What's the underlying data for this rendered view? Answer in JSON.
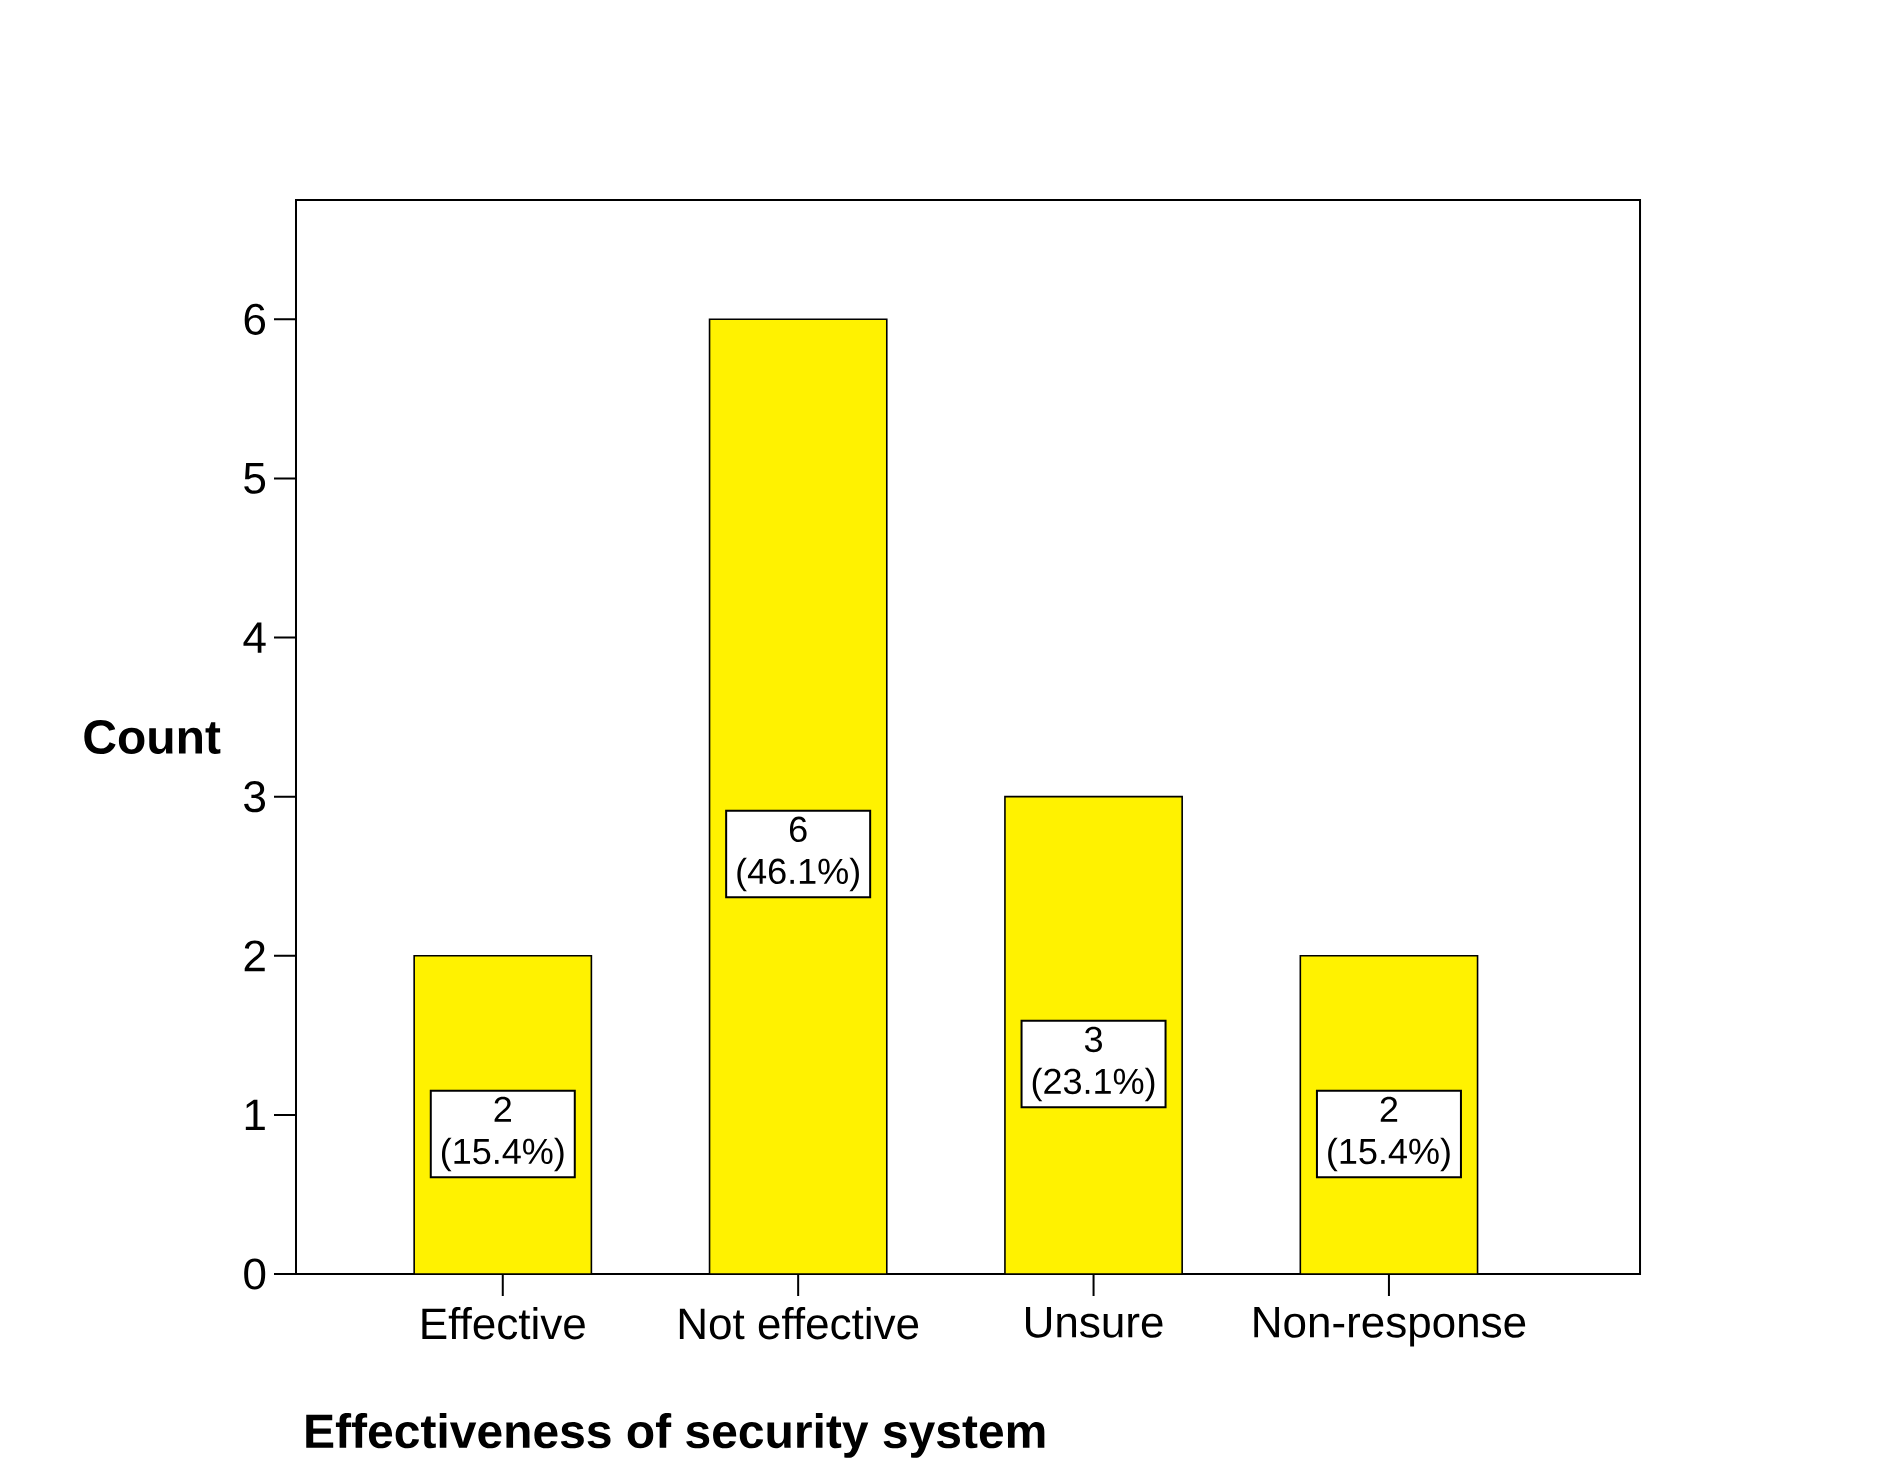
{
  "chart_data": {
    "type": "bar",
    "xlabel": "Effectiveness of security system",
    "ylabel": "Count",
    "categories": [
      "Effective",
      "Not effective",
      "Unsure",
      "Non-response"
    ],
    "values": [
      2,
      6,
      3,
      2
    ],
    "value_labels": [
      "2 (15.4%)",
      "6 (46.1%)",
      "3 (23.1%)",
      "2 (15.4%)"
    ],
    "color": "#fff200",
    "ylim": [
      0,
      6.75
    ],
    "yticks": [
      0,
      1,
      2,
      3,
      4,
      5,
      6
    ]
  }
}
